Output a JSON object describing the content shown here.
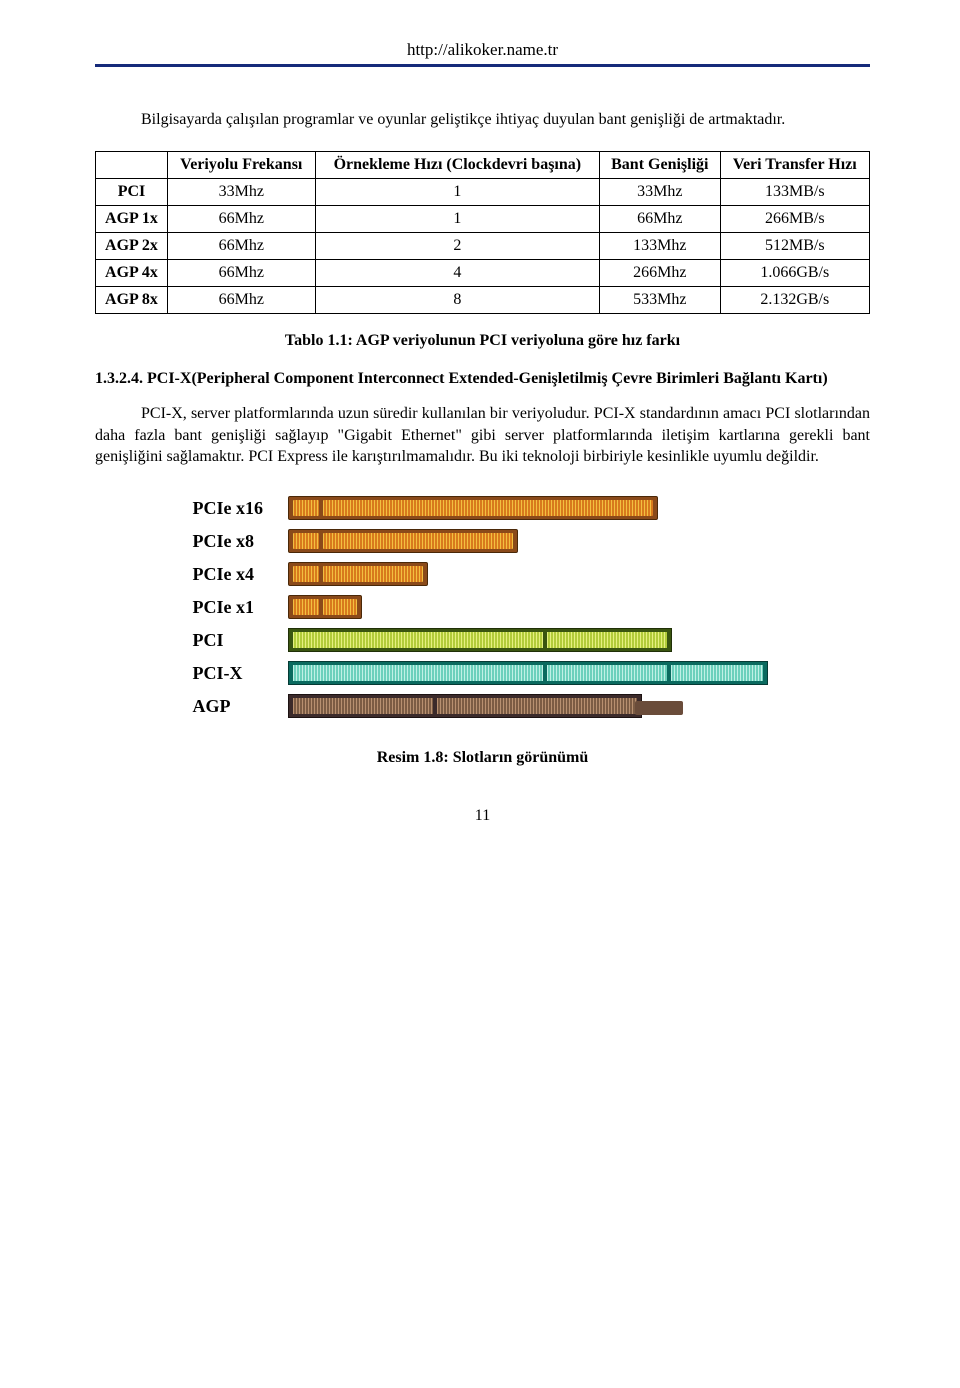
{
  "header": {
    "url": "http://alikoker.name.tr"
  },
  "intro": "Bilgisayarda çalışılan programlar ve oyunlar geliştikçe ihtiyaç duyulan bant genişliği de artmaktadır.",
  "table": {
    "headers": [
      "",
      "Veriyolu Frekansı",
      "Örnekleme Hızı (Clockdevri başına)",
      "Bant Genişliği",
      "Veri Transfer Hızı"
    ],
    "rows": [
      [
        "PCI",
        "33Mhz",
        "1",
        "33Mhz",
        "133MB/s"
      ],
      [
        "AGP 1x",
        "66Mhz",
        "1",
        "66Mhz",
        "266MB/s"
      ],
      [
        "AGP 2x",
        "66Mhz",
        "2",
        "133Mhz",
        "512MB/s"
      ],
      [
        "AGP 4x",
        "66Mhz",
        "4",
        "266Mhz",
        "1.066GB/s"
      ],
      [
        "AGP 8x",
        "66Mhz",
        "8",
        "533Mhz",
        "2.132GB/s"
      ]
    ],
    "caption": "Tablo 1.1: AGP veriyolunun PCI veriyoluna göre hız farkı"
  },
  "section": {
    "number": "1.3.2.4.",
    "title": "PCI-X(Peripheral Component Interconnect Extended-Genişletilmiş Çevre Birimleri Bağlantı Kartı)"
  },
  "body": "PCI-X, server platformlarında uzun süredir kullanılan bir veriyoludur. PCI-X standardının amacı PCI slotlarından daha fazla bant genişliği sağlayıp \"Gigabit Ethernet\" gibi server platformlarında iletişim kartlarına gerekli bant genişliğini sağlamaktır. PCI Express ile karıştırılmamalıdır. Bu iki teknoloji birbiriyle kesinlikle uyumlu değildir.",
  "figure": {
    "slots": [
      {
        "label": "PCIe x16",
        "type": "pcie",
        "segments": [
          26,
          330
        ]
      },
      {
        "label": "PCIe x8",
        "type": "pcie",
        "segments": [
          26,
          190
        ]
      },
      {
        "label": "PCIe x4",
        "type": "pcie",
        "segments": [
          26,
          100
        ]
      },
      {
        "label": "PCIe x1",
        "type": "pcie",
        "segments": [
          26,
          34
        ]
      },
      {
        "label": "PCI",
        "type": "pci",
        "segments": [
          250,
          120
        ]
      },
      {
        "label": "PCI-X",
        "type": "pcix",
        "segments": [
          250,
          120,
          92
        ]
      },
      {
        "label": "AGP",
        "type": "agp",
        "segments": [
          140,
          200
        ],
        "tab": true
      }
    ],
    "caption": "Resim 1.8: Slotların görünümü"
  },
  "pagenum": "11",
  "colors": {
    "rule": "#152a7a",
    "pcie_outer": "#8a4a1a",
    "pcie_inner": "#d87a1d",
    "pci_outer": "#3a5510",
    "pci_inner": "#b2cc3a",
    "pcix_outer": "#0a6a5f",
    "pcix_inner": "#6cd0bc",
    "agp_outer": "#3b2a2a",
    "agp_inner": "#7c5c44"
  }
}
